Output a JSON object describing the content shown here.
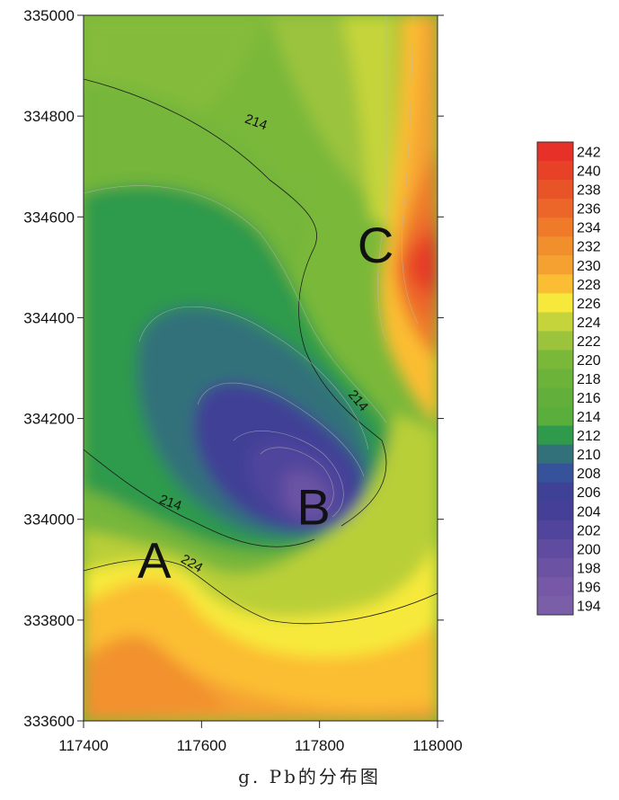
{
  "caption": "g. Pb的分布图",
  "chart_data": {
    "type": "heatmap",
    "subtype": "filled-contour",
    "title": "",
    "xlabel": "",
    "ylabel": "",
    "xlim": [
      117400,
      118000
    ],
    "ylim": [
      333600,
      335000
    ],
    "x_ticks": [
      117400,
      117600,
      117800,
      118000
    ],
    "y_ticks": [
      333600,
      333800,
      334000,
      334200,
      334400,
      334600,
      334800,
      335000
    ],
    "x_tick_labels": [
      "117400",
      "117600",
      "117800",
      "118000"
    ],
    "y_tick_labels": [
      "333600",
      "333800",
      "334000",
      "334200",
      "334400",
      "334600",
      "334800",
      "335000"
    ],
    "colorbar": {
      "levels": [
        194,
        196,
        198,
        200,
        202,
        204,
        206,
        208,
        210,
        212,
        214,
        216,
        218,
        220,
        222,
        224,
        226,
        228,
        230,
        232,
        234,
        236,
        238,
        240,
        242
      ],
      "labels": [
        "194",
        "196",
        "198",
        "200",
        "202",
        "204",
        "206",
        "208",
        "210",
        "212",
        "214",
        "216",
        "218",
        "220",
        "222",
        "224",
        "226",
        "228",
        "230",
        "232",
        "234",
        "236",
        "238",
        "240",
        "242"
      ],
      "colors": [
        "#7b5ea8",
        "#7658a6",
        "#6b52a3",
        "#5f4ba0",
        "#50449c",
        "#453f98",
        "#3f4196",
        "#36529a",
        "#33717a",
        "#2f9a4b",
        "#5aae3b",
        "#62b03b",
        "#6cb33a",
        "#7ab83a",
        "#9bc33c",
        "#c5d43a",
        "#f7e93b",
        "#fbbd33",
        "#f5a131",
        "#f28f2d",
        "#ef7a2a",
        "#ec6529",
        "#e95328",
        "#e74127",
        "#e73027"
      ]
    },
    "contour_labels": [
      {
        "text": "214",
        "x": 117690,
        "y": 334780,
        "rotate": 20
      },
      {
        "text": "214",
        "x": 117860,
        "y": 334230,
        "rotate": 50
      },
      {
        "text": "214",
        "x": 117545,
        "y": 334025,
        "rotate": 20
      },
      {
        "text": "224",
        "x": 117580,
        "y": 333905,
        "rotate": 30
      }
    ],
    "points": [
      {
        "name": "A",
        "x": 117520,
        "y": 333920
      },
      {
        "name": "B",
        "x": 117790,
        "y": 334025
      },
      {
        "name": "C",
        "x": 117895,
        "y": 334545
      }
    ]
  }
}
